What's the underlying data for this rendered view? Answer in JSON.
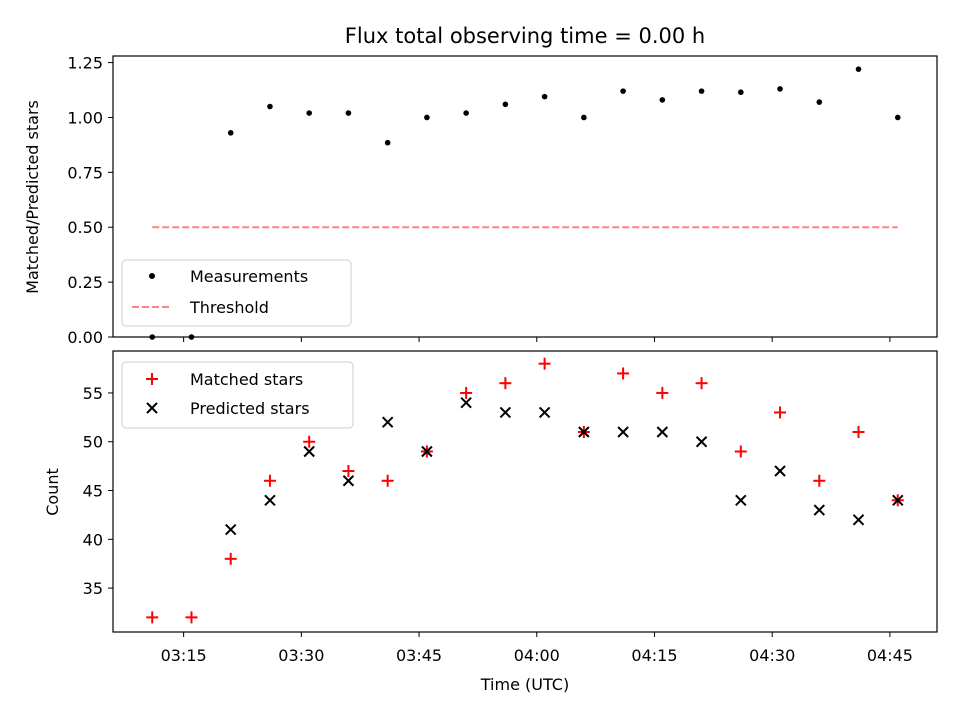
{
  "title": "Flux total observing time = 0.00 h",
  "colors": {
    "measurement": "#000000",
    "threshold": "#ff8080",
    "matched": "#ff0000",
    "predicted": "#000000",
    "axes": "#000000",
    "background": "#ffffff"
  },
  "chart_data": [
    {
      "type": "scatter",
      "panel": "top",
      "title": "Flux total observing time = 0.00 h",
      "xlabel": "",
      "ylabel": "Matched/Predicted stars",
      "xlim": [
        "03:06",
        "04:51"
      ],
      "ylim": [
        0,
        1.28
      ],
      "yticks": [
        0.0,
        0.25,
        0.5,
        0.75,
        1.0,
        1.25
      ],
      "ytick_labels": [
        "0.00",
        "0.25",
        "0.50",
        "0.75",
        "1.00",
        "1.25"
      ],
      "x": [
        "03:11",
        "03:16",
        "03:21",
        "03:26",
        "03:31",
        "03:36",
        "03:41",
        "03:46",
        "03:51",
        "03:56",
        "04:01",
        "04:06",
        "04:11",
        "04:16",
        "04:21",
        "04:26",
        "04:31",
        "04:36",
        "04:41",
        "04:46"
      ],
      "series": [
        {
          "name": "Measurements",
          "marker": "dot",
          "values": [
            0.0,
            0.0,
            0.93,
            1.05,
            1.02,
            1.02,
            0.885,
            1.0,
            1.02,
            1.06,
            1.095,
            1.0,
            1.12,
            1.08,
            1.12,
            1.115,
            1.13,
            1.07,
            1.22,
            1.0
          ]
        },
        {
          "name": "Threshold",
          "marker": "dashed-line",
          "values": [
            0.5,
            0.5
          ],
          "x": [
            "03:11",
            "04:46"
          ]
        }
      ],
      "legend": "lower-left",
      "grid": false
    },
    {
      "type": "scatter",
      "panel": "bottom",
      "xlabel": "Time (UTC)",
      "ylabel": "Count",
      "xlim": [
        "03:06",
        "04:51"
      ],
      "ylim": [
        30.5,
        59.3
      ],
      "yticks": [
        35,
        40,
        45,
        50,
        55
      ],
      "ytick_labels": [
        "35",
        "40",
        "45",
        "50",
        "55"
      ],
      "xtick_labels": [
        "03:15",
        "03:30",
        "03:45",
        "04:00",
        "04:15",
        "04:30",
        "04:45"
      ],
      "x": [
        "03:11",
        "03:16",
        "03:21",
        "03:26",
        "03:31",
        "03:36",
        "03:41",
        "03:46",
        "03:51",
        "03:56",
        "04:01",
        "04:06",
        "04:11",
        "04:16",
        "04:21",
        "04:26",
        "04:31",
        "04:36",
        "04:41",
        "04:46"
      ],
      "series": [
        {
          "name": "Matched stars",
          "marker": "plus",
          "values": [
            32,
            32,
            38,
            46,
            50,
            47,
            46,
            49,
            55,
            56,
            58,
            51,
            57,
            55,
            56,
            49,
            53,
            46,
            51,
            44
          ]
        },
        {
          "name": "Predicted stars",
          "marker": "x",
          "values": [
            null,
            null,
            41,
            44,
            49,
            46,
            52,
            49,
            54,
            53,
            53,
            51,
            51,
            51,
            50,
            44,
            47,
            43,
            42,
            44
          ]
        }
      ],
      "legend": "upper-left",
      "grid": false
    }
  ]
}
